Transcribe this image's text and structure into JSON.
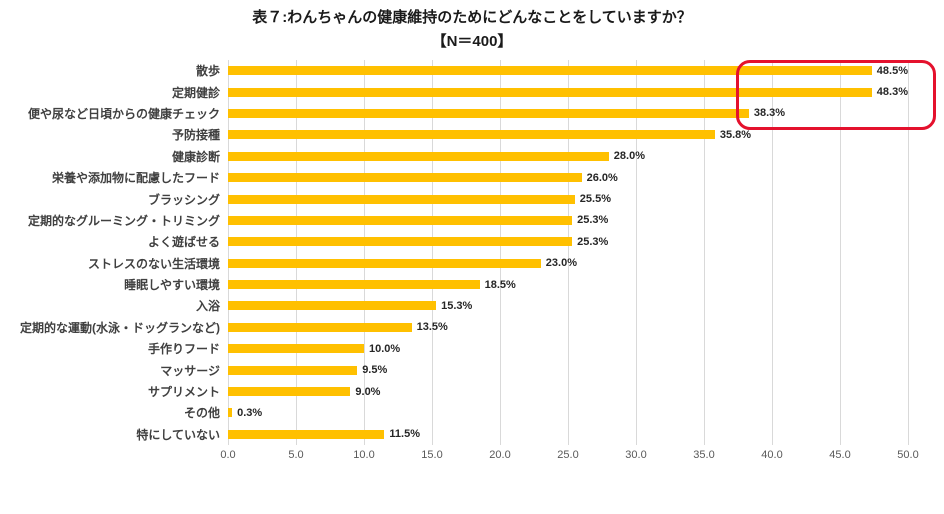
{
  "title": "表７:わんちゃんの健康維持のためにどんなことをしていますか？",
  "subtitle": "【N＝400】",
  "chart_data": {
    "type": "bar",
    "orientation": "horizontal",
    "title": "表７:わんちゃんの健康維持のためにどんなことをしていますか？",
    "subtitle": "【N＝400】",
    "categories": [
      "散歩",
      "定期健診",
      "便や尿など日頃からの健康チェック",
      "予防接種",
      "健康診断",
      "栄養や添加物に配慮したフード",
      "ブラッシング",
      "定期的なグルーミング・トリミング",
      "よく遊ばせる",
      "ストレスのない生活環境",
      "睡眠しやすい環境",
      "入浴",
      "定期的な運動(水泳・ドッグランなど)",
      "手作りフード",
      "マッサージ",
      "サプリメント",
      "その他",
      "特にしていない"
    ],
    "values": [
      48.5,
      48.3,
      38.3,
      35.8,
      28.0,
      26.0,
      25.5,
      25.3,
      25.3,
      23.0,
      18.5,
      15.3,
      13.5,
      10.0,
      9.5,
      9.0,
      0.3,
      11.5
    ],
    "value_labels": [
      "48.5%",
      "48.3%",
      "38.3%",
      "35.8%",
      "28.0%",
      "26.0%",
      "25.5%",
      "25.3%",
      "25.3%",
      "23.0%",
      "18.5%",
      "15.3%",
      "13.5%",
      "10.0%",
      "9.5%",
      "9.0%",
      "0.3%",
      "11.5%"
    ],
    "xlabel": "",
    "ylabel": "",
    "xlim": [
      0,
      50
    ],
    "xticks": [
      "0.0",
      "5.0",
      "10.0",
      "15.0",
      "20.0",
      "25.0",
      "30.0",
      "35.0",
      "40.0",
      "45.0",
      "50.0"
    ],
    "grid": true,
    "bar_color": "#FFC000",
    "grid_color": "#d9d9d9",
    "annotation": {
      "type": "highlight-box",
      "color": "#e4112d",
      "highlighted_categories": [
        "散歩",
        "定期健診",
        "便や尿など日頃からの健康チェック"
      ],
      "highlighted_values": [
        "48.5%",
        "48.3%",
        "38.3%"
      ]
    }
  }
}
